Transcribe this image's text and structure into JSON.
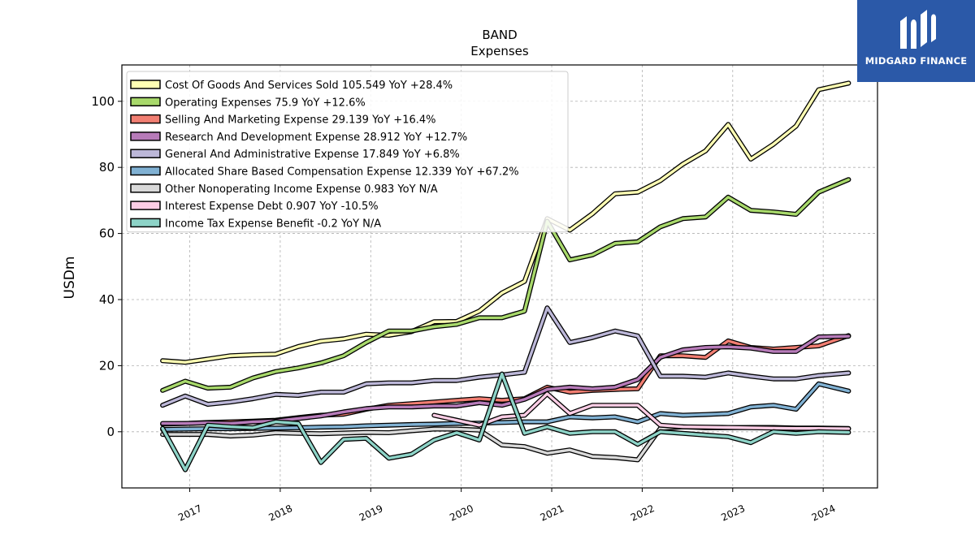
{
  "chart_data": {
    "type": "line",
    "title": "BAND",
    "subtitle": "Expenses",
    "ylabel": "USDm",
    "xlabel": "",
    "ylim": [
      -17,
      111
    ],
    "xlim": [
      2016.25,
      2024.6
    ],
    "yticks": [
      0,
      20,
      40,
      60,
      80,
      100
    ],
    "xticks": [
      2017,
      2018,
      2019,
      2020,
      2021,
      2022,
      2023,
      2024
    ],
    "xtick_labels": [
      "2017",
      "2018",
      "2019",
      "2020",
      "2021",
      "2022",
      "2023",
      "2024"
    ],
    "grid": true,
    "legend_position": "top-left",
    "series": [
      {
        "name": "Cost Of Goods And Services Sold  105.549 YoY +28.4%",
        "color": "#ffffb3",
        "x": [
          2016.7,
          2016.95,
          2017.2,
          2017.45,
          2017.7,
          2017.95,
          2018.2,
          2018.45,
          2018.7,
          2018.95,
          2019.2,
          2019.45,
          2019.7,
          2019.95,
          2020.2,
          2020.45,
          2020.7,
          2020.95,
          2021.2,
          2021.45,
          2021.7,
          2021.95,
          2022.2,
          2022.45,
          2022.7,
          2022.95,
          2023.2,
          2023.45,
          2023.7,
          2023.95,
          2024.28
        ],
        "values": [
          21.5,
          21,
          22,
          23,
          23.3,
          23.5,
          25.8,
          27.4,
          28.1,
          29.5,
          29.2,
          30.3,
          33.3,
          33.4,
          36.5,
          42,
          45.5,
          64.5,
          61,
          66,
          72,
          72.5,
          76,
          81,
          85,
          93,
          82.5,
          87,
          92.5,
          103.5,
          105.5
        ]
      },
      {
        "name": "Operating Expenses  75.9 YoY +12.6%",
        "color": "#a8d96b",
        "x": [
          2016.7,
          2016.95,
          2017.2,
          2017.45,
          2017.7,
          2017.95,
          2018.2,
          2018.45,
          2018.7,
          2018.95,
          2019.2,
          2019.45,
          2019.7,
          2019.95,
          2020.2,
          2020.45,
          2020.7,
          2020.95,
          2021.2,
          2021.45,
          2021.7,
          2021.95,
          2022.2,
          2022.45,
          2022.7,
          2022.95,
          2023.2,
          2023.45,
          2023.7,
          2023.95,
          2024.28
        ],
        "values": [
          12.5,
          15.3,
          13.2,
          13.5,
          16.3,
          18.2,
          19.3,
          20.8,
          23,
          27,
          30.5,
          30.5,
          31.8,
          32.5,
          34.5,
          34.5,
          36.5,
          63.7,
          52,
          53.5,
          57,
          57.5,
          62,
          64.5,
          65,
          71,
          67,
          66.5,
          65.8,
          72.5,
          76.3
        ]
      },
      {
        "name": "Selling And Marketing Expense  29.139 YoY +16.4%",
        "color": "#f17e72",
        "x": [
          2016.7,
          2016.95,
          2017.2,
          2017.45,
          2017.7,
          2017.95,
          2018.2,
          2018.45,
          2018.7,
          2018.95,
          2019.2,
          2019.45,
          2019.7,
          2019.95,
          2020.2,
          2020.45,
          2020.7,
          2020.95,
          2021.2,
          2021.45,
          2021.7,
          2021.95,
          2022.2,
          2022.45,
          2022.7,
          2022.95,
          2023.2,
          2023.45,
          2023.7,
          2023.95,
          2024.28
        ],
        "values": [
          2.3,
          2.5,
          2.8,
          3,
          3.2,
          3.5,
          4.3,
          5,
          5.3,
          6.8,
          8,
          8.5,
          9,
          9.5,
          10,
          9.5,
          10,
          13.5,
          12,
          12.5,
          12.8,
          13,
          23,
          23,
          22.5,
          27.5,
          25.5,
          25,
          25.5,
          26,
          29.1
        ]
      },
      {
        "name": "Research And Development Expense  28.912 YoY +12.7%",
        "color": "#b77bb9",
        "x": [
          2016.7,
          2016.95,
          2017.2,
          2017.45,
          2017.7,
          2017.95,
          2018.2,
          2018.45,
          2018.7,
          2018.95,
          2019.2,
          2019.45,
          2019.7,
          2019.95,
          2020.2,
          2020.45,
          2020.7,
          2020.95,
          2021.2,
          2021.45,
          2021.7,
          2021.95,
          2022.2,
          2022.45,
          2022.7,
          2022.95,
          2023.2,
          2023.45,
          2023.7,
          2023.95,
          2024.28
        ],
        "values": [
          2.5,
          2.5,
          2.7,
          2.5,
          3,
          3.3,
          4,
          4.8,
          6,
          7,
          7.5,
          7.5,
          7.8,
          7.8,
          8.8,
          8,
          9.8,
          12.8,
          13.5,
          13,
          13.5,
          15.8,
          22.5,
          24.8,
          25.5,
          25.7,
          25.3,
          24.3,
          24.3,
          28.7,
          28.9
        ]
      },
      {
        "name": "General And Administrative Expense  17.849 YoY +6.8%",
        "color": "#bcb7d8",
        "x": [
          2016.7,
          2016.95,
          2017.2,
          2017.45,
          2017.7,
          2017.95,
          2018.2,
          2018.45,
          2018.7,
          2018.95,
          2019.2,
          2019.45,
          2019.7,
          2019.95,
          2020.2,
          2020.45,
          2020.7,
          2020.95,
          2021.2,
          2021.45,
          2021.7,
          2021.95,
          2022.2,
          2022.45,
          2022.7,
          2022.95,
          2023.2,
          2023.45,
          2023.7,
          2023.95,
          2024.28
        ],
        "values": [
          8,
          10.8,
          8.3,
          9,
          10,
          11.3,
          11,
          12,
          12,
          14.5,
          14.8,
          14.8,
          15.5,
          15.5,
          16.5,
          17.2,
          18,
          37.5,
          27,
          28.5,
          30.5,
          29,
          16.8,
          16.8,
          16.5,
          17.8,
          16.8,
          16,
          16,
          17,
          17.8
        ]
      },
      {
        "name": "Allocated Share Based Compensation Expense  12.339 YoY +67.2%",
        "color": "#80b1d3",
        "x": [
          2016.7,
          2016.95,
          2017.2,
          2017.45,
          2017.7,
          2017.95,
          2018.2,
          2018.45,
          2018.7,
          2018.95,
          2019.2,
          2019.45,
          2019.7,
          2019.95,
          2020.2,
          2020.45,
          2020.7,
          2020.95,
          2021.2,
          2021.45,
          2021.7,
          2021.95,
          2022.2,
          2022.45,
          2022.7,
          2022.95,
          2023.2,
          2023.45,
          2023.7,
          2023.95,
          2024.28
        ],
        "values": [
          0.7,
          0.8,
          0.9,
          0.9,
          1,
          1.1,
          1.2,
          1.4,
          1.5,
          1.8,
          2,
          2.2,
          2.3,
          2.5,
          2.6,
          2.8,
          3,
          3,
          4.5,
          4.2,
          4.5,
          3,
          5.5,
          5,
          5.2,
          5.5,
          7.5,
          8,
          6.8,
          14.5,
          12.3
        ]
      },
      {
        "name": "Other Nonoperating Income Expense  0.983 YoY N/A",
        "color": "#d9d9d9",
        "x": [
          2016.7,
          2016.95,
          2017.2,
          2017.45,
          2017.7,
          2017.95,
          2018.2,
          2018.45,
          2018.7,
          2018.95,
          2019.2,
          2019.45,
          2019.7,
          2019.95,
          2020.2,
          2020.45,
          2020.7,
          2020.95,
          2021.2,
          2021.45,
          2021.7,
          2021.95,
          2022.2,
          2022.45,
          2022.7,
          2022.95,
          2023.2,
          2023.45,
          2023.7,
          2023.95,
          2024.28
        ],
        "values": [
          -0.8,
          -0.8,
          -0.8,
          -1.3,
          -1,
          -0.3,
          -0.5,
          -0.6,
          -0.4,
          -0.2,
          -0.3,
          0.3,
          0.8,
          0.8,
          0.5,
          -4,
          -4.5,
          -6.5,
          -5.5,
          -7.5,
          -7.8,
          -8.5,
          1,
          1.5,
          1.2,
          1.2,
          1.3,
          1.3,
          1.1,
          1.1,
          1
        ]
      },
      {
        "name": "Interest Expense Debt  0.907 YoY -10.5%",
        "color": "#fccde5",
        "x": [
          2019.7,
          2019.95,
          2020.2,
          2020.45,
          2020.7,
          2020.95,
          2021.2,
          2021.45,
          2021.7,
          2021.95,
          2022.2,
          2022.45,
          2022.7,
          2022.95,
          2023.2,
          2023.45,
          2023.7,
          2023.95,
          2024.28
        ],
        "values": [
          5,
          3.5,
          2,
          4.5,
          5,
          11.5,
          5.5,
          8,
          8,
          8,
          2,
          1.5,
          1.4,
          1.3,
          1.2,
          1.1,
          1,
          1,
          0.9
        ]
      },
      {
        "name": "Income Tax Expense Benefit  -0.2 YoY N/A",
        "color": "#8dd3c7",
        "x": [
          2016.7,
          2016.95,
          2017.2,
          2017.45,
          2017.7,
          2017.95,
          2018.2,
          2018.45,
          2018.7,
          2018.95,
          2019.2,
          2019.45,
          2019.7,
          2019.95,
          2020.2,
          2020.45,
          2020.7,
          2020.95,
          2021.2,
          2021.45,
          2021.7,
          2021.95,
          2022.2,
          2022.45,
          2022.7,
          2022.95,
          2023.2,
          2023.45,
          2023.7,
          2023.95,
          2024.28
        ],
        "values": [
          1,
          -11.5,
          2,
          1.5,
          1.2,
          3,
          2.5,
          -9.3,
          -2.3,
          -2,
          -8,
          -6.8,
          -2.5,
          -0.3,
          -2.5,
          17.5,
          -0.5,
          1.5,
          -0.5,
          0,
          0,
          -3.8,
          0,
          -0.5,
          -1,
          -1.5,
          -3.3,
          0,
          -0.5,
          0,
          -0.2
        ]
      }
    ]
  },
  "brand": {
    "name": "MIDGARD FINANCE",
    "color": "#2b59a8"
  }
}
